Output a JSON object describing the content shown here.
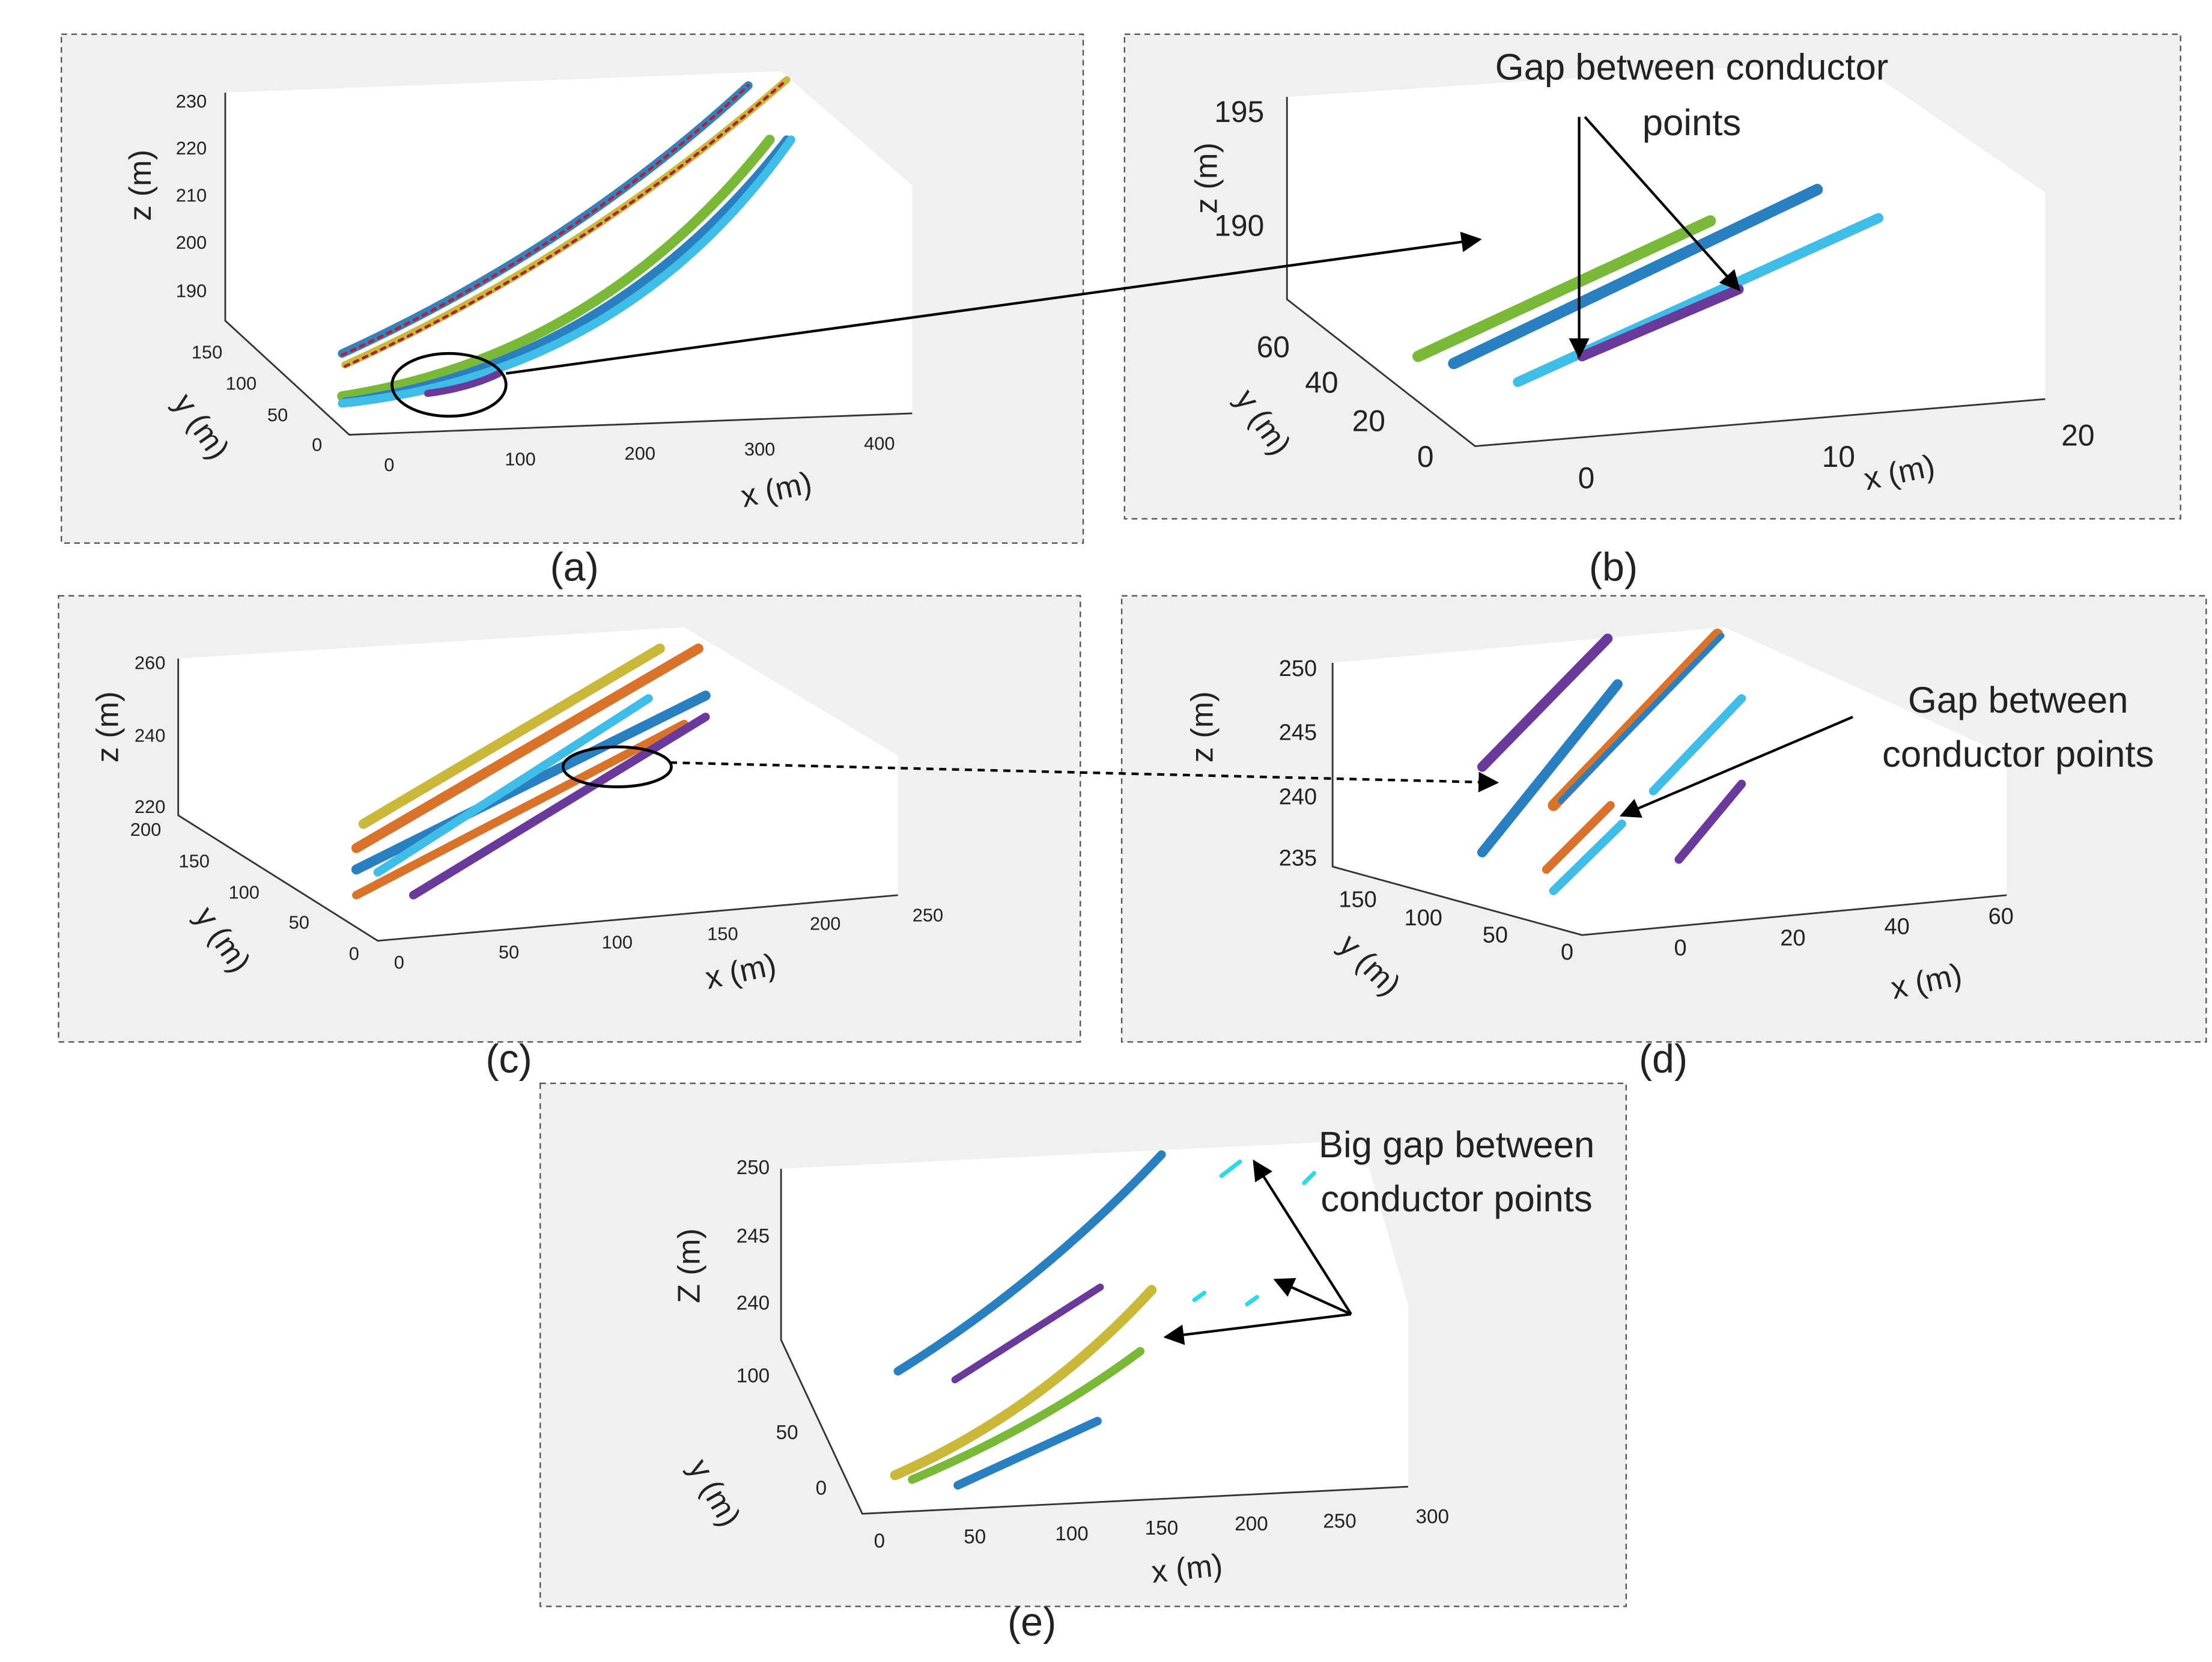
{
  "panels": [
    {
      "label": "(a)",
      "z_title": "z (m)",
      "y_title": "y (m)",
      "x_title": "x (m)",
      "z_ticks": [
        "230",
        "220",
        "210",
        "200",
        "190"
      ],
      "y_ticks": [
        "150",
        "100",
        "50",
        "0"
      ],
      "x_ticks": [
        "0",
        "100",
        "200",
        "300",
        "400"
      ],
      "annotation": []
    },
    {
      "label": "(b)",
      "z_title": "z (m)",
      "y_title": "y (m)",
      "x_title": "x (m)",
      "z_ticks": [
        "195",
        "190"
      ],
      "y_ticks": [
        "60",
        "40",
        "20",
        "0"
      ],
      "x_ticks": [
        "0",
        "10",
        "20"
      ],
      "annotation": [
        "Gap between conductor",
        "points"
      ]
    },
    {
      "label": "(c)",
      "z_title": "z (m)",
      "y_title": "y (m)",
      "x_title": "x (m)",
      "z_ticks": [
        "260",
        "240",
        "220"
      ],
      "y_ticks": [
        "200",
        "150",
        "100",
        "50",
        "0"
      ],
      "x_ticks": [
        "0",
        "50",
        "100",
        "150",
        "200",
        "250"
      ],
      "annotation": []
    },
    {
      "label": "(d)",
      "z_title": "z (m)",
      "y_title": "y (m)",
      "x_title": "x (m)",
      "z_ticks": [
        "250",
        "245",
        "240",
        "235"
      ],
      "y_ticks": [
        "150",
        "100",
        "50",
        "0"
      ],
      "x_ticks": [
        "0",
        "20",
        "40",
        "60"
      ],
      "annotation": [
        "Gap between",
        "conductor points"
      ]
    },
    {
      "label": "(e)",
      "z_title": "Z (m)",
      "y_title": "y (m)",
      "x_title": "x (m)",
      "z_ticks": [
        "250",
        "245",
        "240"
      ],
      "y_ticks": [
        "100",
        "50",
        "0"
      ],
      "x_ticks": [
        "0",
        "50",
        "100",
        "150",
        "200",
        "250",
        "300"
      ],
      "annotation": [
        "Big gap between",
        "conductor points"
      ]
    }
  ]
}
